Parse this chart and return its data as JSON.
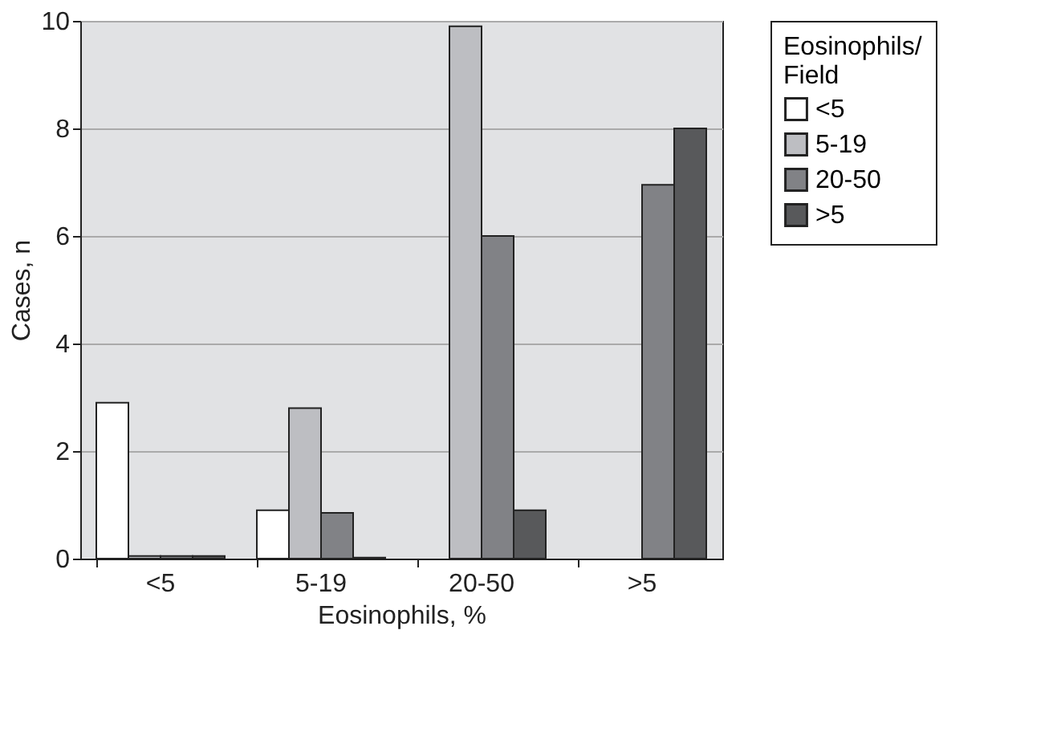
{
  "chart_data": {
    "type": "bar",
    "xlabel": "Eosinophils, %",
    "ylabel": "Cases, n",
    "legend_title": "Eosinophils/ Field",
    "categories": [
      "<5",
      "5-19",
      "20-50",
      ">5"
    ],
    "series": [
      {
        "name": "<5",
        "color": "#ffffff",
        "values": [
          2.9,
          0.9,
          null,
          null
        ]
      },
      {
        "name": "5-19",
        "color": "#bdbec2",
        "values": [
          0.05,
          2.8,
          9.9,
          null
        ]
      },
      {
        "name": "20-50",
        "color": "#818286",
        "values": [
          0.05,
          0.85,
          6,
          6.95
        ]
      },
      {
        "name": ">5",
        "color": "#58595b",
        "values": [
          0.05,
          0.02,
          0.9,
          8
        ]
      }
    ],
    "ylim": [
      0,
      10
    ],
    "yticks": [
      0,
      2,
      4,
      6,
      8,
      10
    ],
    "grid": "y",
    "legend": "right"
  }
}
